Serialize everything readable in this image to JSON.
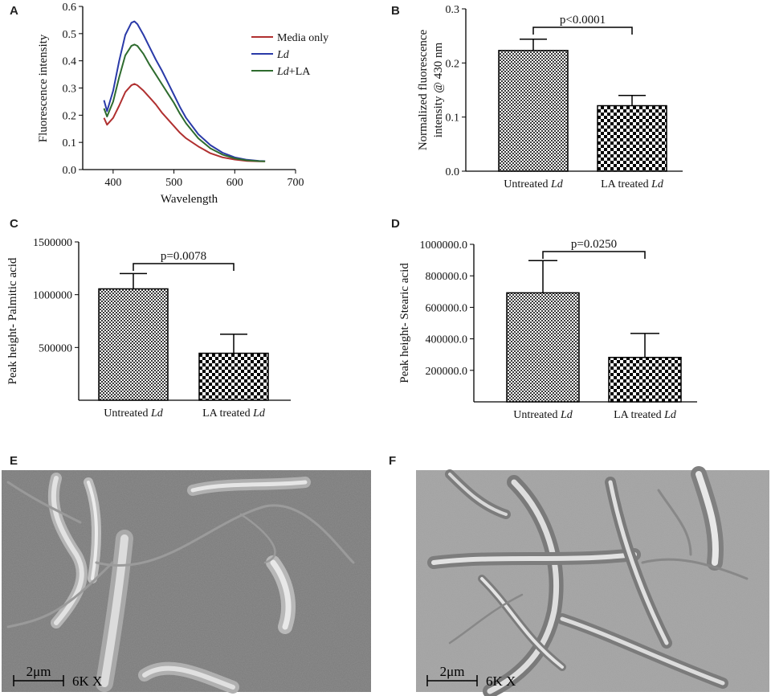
{
  "panels": {
    "A": "A",
    "B": "B",
    "C": "C",
    "D": "D",
    "E": "E",
    "F": "F"
  },
  "chart_data": [
    {
      "panel": "A",
      "type": "line",
      "xlabel": "Wavelength",
      "ylabel": "Fluorescence intensity",
      "xlim": [
        350,
        700
      ],
      "ylim": [
        0.0,
        0.6
      ],
      "xticks": [
        "400",
        "500",
        "600",
        "700"
      ],
      "yticks": [
        "0.0",
        "0.1",
        "0.2",
        "0.3",
        "0.4",
        "0.5",
        "0.6"
      ],
      "legend_position": "right",
      "x": [
        385,
        390,
        400,
        410,
        420,
        430,
        435,
        440,
        450,
        460,
        470,
        480,
        490,
        500,
        510,
        520,
        540,
        560,
        580,
        600,
        620,
        640,
        650
      ],
      "series": [
        {
          "name": "Media only",
          "legend_parts": [
            "Media only",
            ""
          ],
          "color": "#b03030",
          "values": [
            0.19,
            0.165,
            0.19,
            0.235,
            0.285,
            0.31,
            0.315,
            0.31,
            0.29,
            0.265,
            0.24,
            0.21,
            0.185,
            0.16,
            0.135,
            0.115,
            0.085,
            0.06,
            0.045,
            0.037,
            0.032,
            0.03,
            0.03
          ]
        },
        {
          "name": "Ld",
          "legend_parts": [
            "Ld",
            ""
          ],
          "color": "#2a3aa8",
          "values": [
            0.255,
            0.215,
            0.29,
            0.4,
            0.495,
            0.54,
            0.545,
            0.535,
            0.495,
            0.45,
            0.405,
            0.365,
            0.32,
            0.275,
            0.23,
            0.19,
            0.13,
            0.09,
            0.062,
            0.045,
            0.036,
            0.032,
            0.031
          ]
        },
        {
          "name": "Ld+LA",
          "legend_parts": [
            "Ld",
            "+LA"
          ],
          "color": "#2e6b2e",
          "values": [
            0.225,
            0.195,
            0.25,
            0.34,
            0.42,
            0.455,
            0.46,
            0.455,
            0.425,
            0.385,
            0.35,
            0.315,
            0.28,
            0.245,
            0.205,
            0.17,
            0.115,
            0.078,
            0.055,
            0.041,
            0.034,
            0.031,
            0.03
          ]
        }
      ]
    },
    {
      "panel": "B",
      "type": "bar",
      "ylabel_lines": [
        "Normalized fluorescence",
        "intensity @ 430 nm"
      ],
      "ylim": [
        0.0,
        0.3
      ],
      "yticks": [
        "0.0",
        "0.1",
        "0.2",
        "0.3"
      ],
      "categories": [
        [
          "Untreated ",
          "Ld"
        ],
        [
          "LA treated ",
          "Ld"
        ]
      ],
      "values": [
        0.223,
        0.121
      ],
      "errors": [
        0.021,
        0.019
      ],
      "pvalue": "p<0.0001"
    },
    {
      "panel": "C",
      "type": "bar",
      "ylabel_lines": [
        "Peak height- Palmitic acid"
      ],
      "ylim": [
        0,
        1500000
      ],
      "yticks": [
        "500000",
        "1000000",
        "1500000"
      ],
      "ytick_values": [
        500000,
        1000000,
        1500000
      ],
      "categories": [
        [
          "Untreated ",
          "Ld"
        ],
        [
          "LA treated ",
          "Ld"
        ]
      ],
      "values": [
        1055000,
        445000
      ],
      "errors": [
        145000,
        180000
      ],
      "pvalue": "p=0.0078"
    },
    {
      "panel": "D",
      "type": "bar",
      "ylabel_lines": [
        "Peak height- Stearic acid"
      ],
      "ylim": [
        0,
        1000000
      ],
      "yticks": [
        "200000.0",
        "400000.0",
        "600000.0",
        "800000.0",
        "1000000.0"
      ],
      "ytick_values": [
        200000,
        400000,
        600000,
        800000,
        1000000
      ],
      "categories": [
        [
          "Untreated ",
          "Ld"
        ],
        [
          "LA treated ",
          "Ld"
        ]
      ],
      "values": [
        692000,
        282000
      ],
      "errors": [
        205000,
        152000
      ],
      "pvalue": "p=0.0250"
    }
  ],
  "micrographs": {
    "E": {
      "scale_bar": "2μm",
      "magnification": "6K X"
    },
    "F": {
      "scale_bar": "2μm",
      "magnification": "6K X"
    }
  }
}
